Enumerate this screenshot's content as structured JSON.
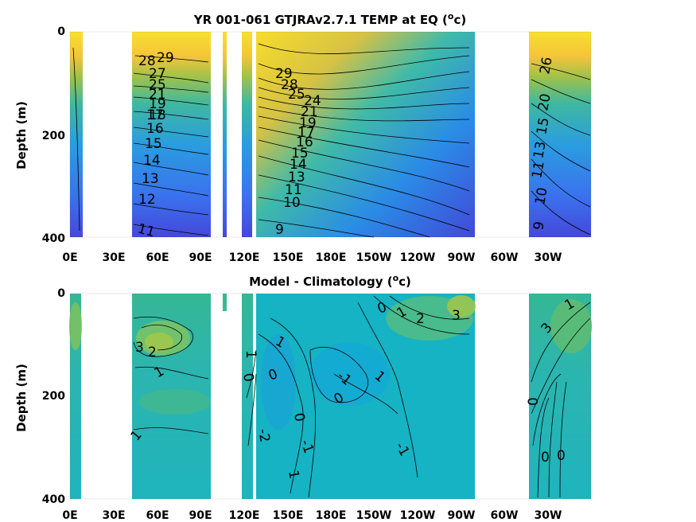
{
  "chart_data": [
    {
      "type": "heatmap",
      "title": "YR 001-061 GTJRAv2.7.1 TEMP at EQ (",
      "title_sup": "o",
      "title_unit_tail": "c)",
      "ylabel": "Depth (m)",
      "x_ticks": [
        "0E",
        "30E",
        "60E",
        "90E",
        "120E",
        "150E",
        "180E",
        "150W",
        "120W",
        "90W",
        "60W",
        "30W"
      ],
      "y_ticks": [
        "0",
        "200",
        "400"
      ],
      "ylim": [
        0,
        400
      ],
      "y_reversed": true,
      "colormap": "parula",
      "contour_labels": [
        "29",
        "28",
        "27",
        "26",
        "25",
        "24",
        "23",
        "22",
        "21",
        "20",
        "19",
        "18",
        "17",
        "16",
        "15",
        "14",
        "13",
        "12",
        "11",
        "10",
        "9"
      ]
    },
    {
      "type": "heatmap",
      "title": "Model - Climatology (",
      "title_sup": "o",
      "title_unit_tail": "c)",
      "ylabel": "Depth (m)",
      "x_ticks": [
        "0E",
        "30E",
        "60E",
        "90E",
        "120E",
        "150E",
        "180E",
        "150W",
        "120W",
        "90W",
        "60W",
        "30W"
      ],
      "y_ticks": [
        "0",
        "200",
        "400"
      ],
      "ylim": [
        0,
        400
      ],
      "y_reversed": true,
      "colormap": "parula",
      "contour_labels": [
        "3",
        "2",
        "1",
        "0",
        "-1",
        "-2"
      ]
    }
  ],
  "colors": {
    "parula_yellow": "#f9de2c",
    "parula_orange": "#f0b43a",
    "parula_green": "#37b77a",
    "parula_teal": "#16b5c2",
    "parula_blue": "#3a78f0",
    "parula_darkblue": "#4040d8"
  }
}
